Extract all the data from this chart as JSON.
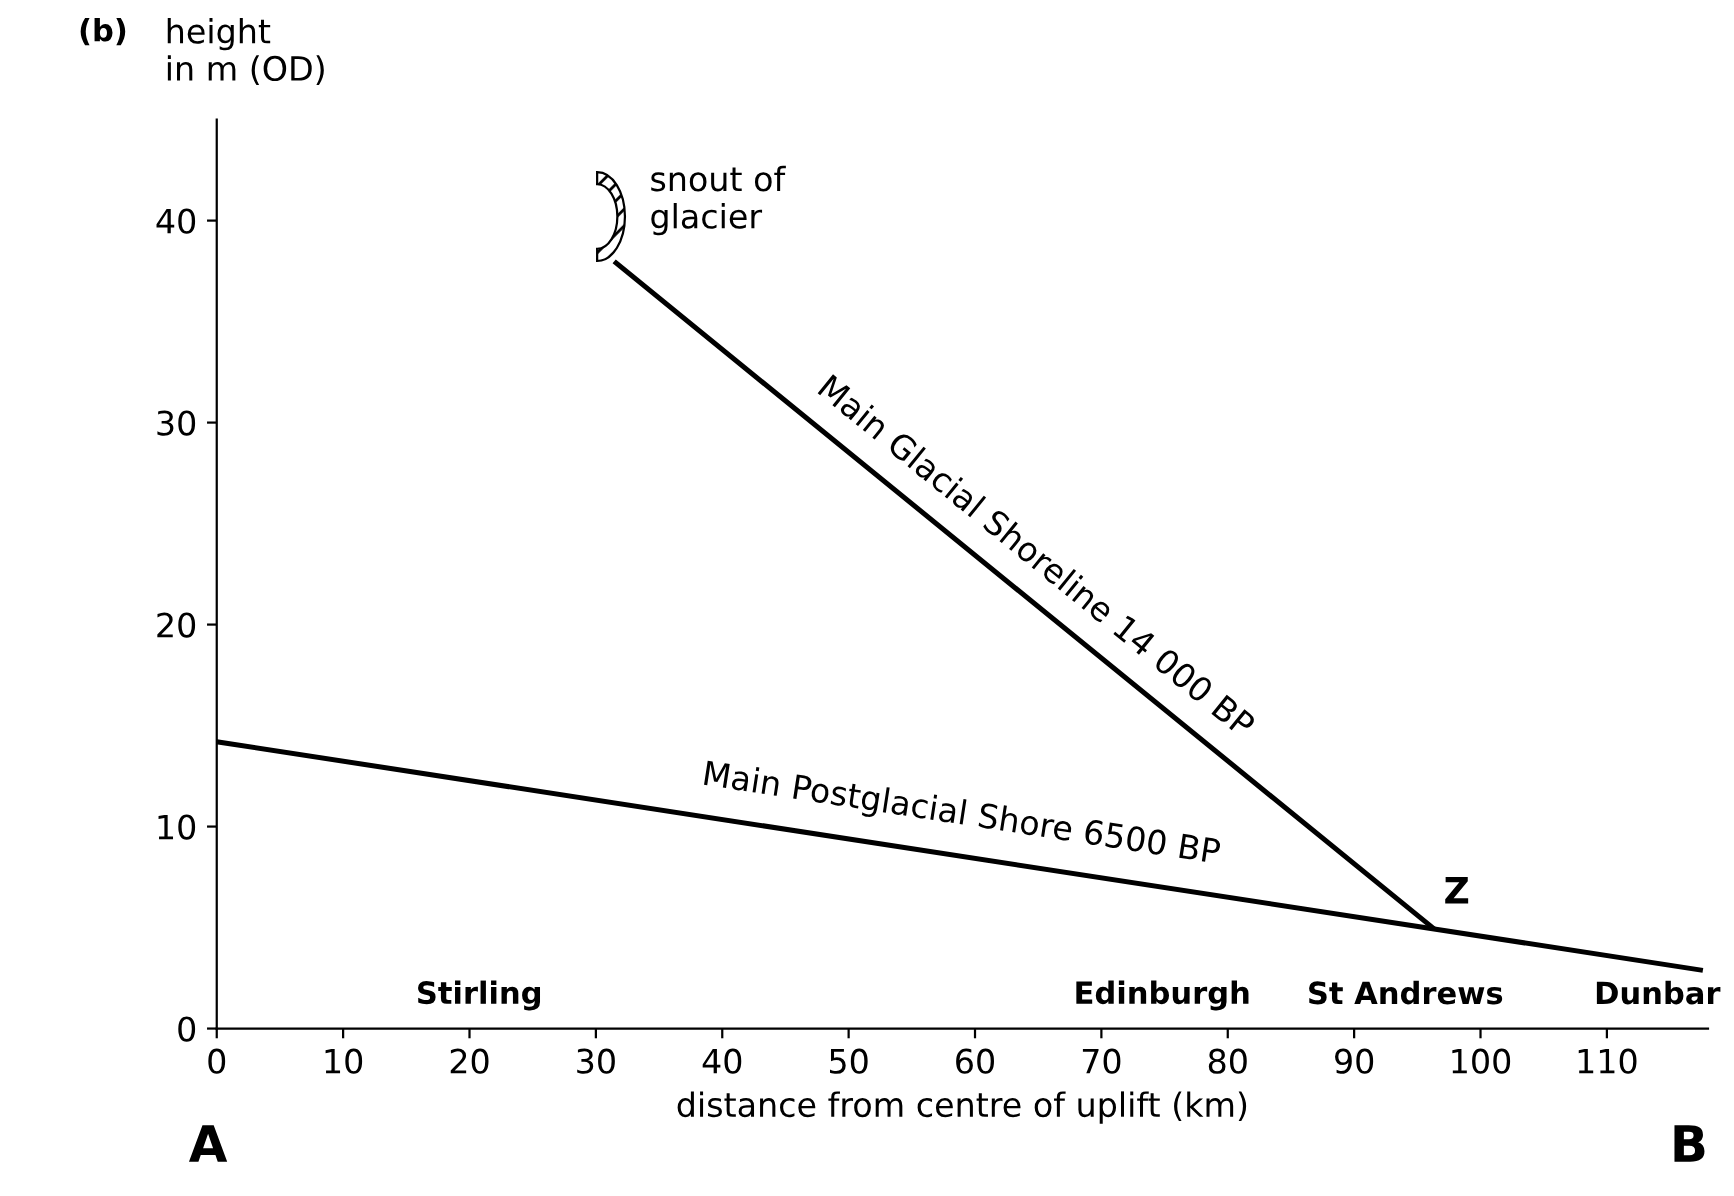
{
  "chart_data": {
    "type": "line",
    "title": "(b)",
    "ylabel": "height\nin m (OD)",
    "xlabel": "distance from centre of uplift (km)",
    "xlim": [
      0,
      118
    ],
    "ylim": [
      0,
      45
    ],
    "xticks": [
      0,
      10,
      20,
      30,
      40,
      50,
      60,
      70,
      80,
      90,
      100,
      110
    ],
    "yticks": [
      0,
      10,
      20,
      30,
      40
    ],
    "grid": false,
    "legend": false,
    "series": [
      {
        "name": "Main Glacial Shoreline 14 000 BP",
        "color": "#000000",
        "x": [
          31.6,
          96.2
        ],
        "values": [
          37.9,
          5.0
        ]
      },
      {
        "name": "Main Postglacial Shore 6500 BP",
        "color": "#000000",
        "x": [
          0,
          117.4
        ],
        "values": [
          14.2,
          2.9
        ]
      }
    ],
    "annotations": [
      "snout of\nglacier",
      "Z",
      "Stirling",
      "Edinburgh",
      "St Andrews",
      "Dunbar",
      "A",
      "B"
    ]
  }
}
